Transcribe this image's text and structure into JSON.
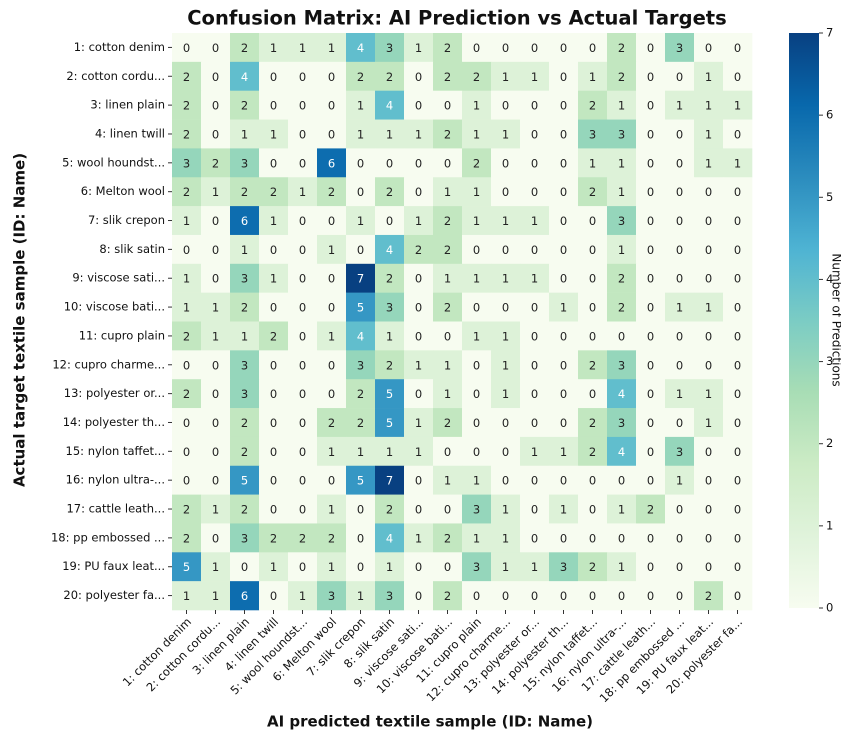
{
  "chart_data": {
    "type": "heatmap",
    "title": "Confusion Matrix: AI Prediction vs Actual Targets",
    "xlabel": "AI predicted textile sample (ID: Name)",
    "ylabel": "Actual target textile sample (ID: Name)",
    "colorbar_label": "Number of Predictions",
    "x_categories": [
      "1: cotton denim",
      "2: cotton cordu...",
      "3: linen plain",
      "4: linen twill",
      "5: wool houndst...",
      "6: Melton wool",
      "7: slik crepon",
      "8: slik satin",
      "9: viscose sati...",
      "10: viscose bati...",
      "11: cupro plain",
      "12: cupro charme...",
      "13: polyester or...",
      "14: polyester th...",
      "15: nylon taffet...",
      "16: nylon ultra-...",
      "17: cattle leath...",
      "18: pp embossed ...",
      "19: PU faux leat...",
      "20: polyester fa..."
    ],
    "y_categories": [
      "1: cotton denim",
      "2: cotton cordu...",
      "3: linen plain",
      "4: linen twill",
      "5: wool houndst...",
      "6: Melton wool",
      "7: slik crepon",
      "8: slik satin",
      "9: viscose sati...",
      "10: viscose bati...",
      "11: cupro plain",
      "12: cupro charme...",
      "13: polyester or...",
      "14: polyester th...",
      "15: nylon taffet...",
      "16: nylon ultra-...",
      "17: cattle leath...",
      "18: pp embossed ...",
      "19: PU faux leat...",
      "20: polyester fa..."
    ],
    "values": [
      [
        0,
        0,
        2,
        1,
        1,
        1,
        4,
        3,
        1,
        2,
        0,
        0,
        0,
        0,
        0,
        2,
        0,
        3,
        0,
        0
      ],
      [
        2,
        0,
        4,
        0,
        0,
        0,
        2,
        2,
        0,
        2,
        2,
        1,
        1,
        0,
        1,
        2,
        0,
        0,
        1,
        0
      ],
      [
        2,
        0,
        2,
        0,
        0,
        0,
        1,
        4,
        0,
        0,
        1,
        0,
        0,
        0,
        2,
        1,
        0,
        1,
        1,
        1
      ],
      [
        2,
        0,
        1,
        1,
        0,
        0,
        1,
        1,
        1,
        2,
        1,
        1,
        0,
        0,
        3,
        3,
        0,
        0,
        1,
        0
      ],
      [
        3,
        2,
        3,
        0,
        0,
        6,
        0,
        0,
        0,
        0,
        2,
        0,
        0,
        0,
        1,
        1,
        0,
        0,
        1,
        1
      ],
      [
        2,
        1,
        2,
        2,
        1,
        2,
        0,
        2,
        0,
        1,
        1,
        0,
        0,
        0,
        2,
        1,
        0,
        0,
        0,
        0
      ],
      [
        1,
        0,
        6,
        1,
        0,
        0,
        1,
        0,
        1,
        2,
        1,
        1,
        1,
        0,
        0,
        3,
        0,
        0,
        0,
        0
      ],
      [
        0,
        0,
        1,
        0,
        0,
        1,
        0,
        4,
        2,
        2,
        0,
        0,
        0,
        0,
        0,
        1,
        0,
        0,
        0,
        0
      ],
      [
        1,
        0,
        3,
        1,
        0,
        0,
        7,
        2,
        0,
        1,
        1,
        1,
        1,
        0,
        0,
        2,
        0,
        0,
        0,
        0
      ],
      [
        1,
        1,
        2,
        0,
        0,
        0,
        5,
        3,
        0,
        2,
        0,
        0,
        0,
        1,
        0,
        2,
        0,
        1,
        1,
        0
      ],
      [
        2,
        1,
        1,
        2,
        0,
        1,
        4,
        1,
        0,
        0,
        1,
        1,
        0,
        0,
        0,
        0,
        0,
        0,
        0,
        0
      ],
      [
        0,
        0,
        3,
        0,
        0,
        0,
        3,
        2,
        1,
        1,
        0,
        1,
        0,
        0,
        2,
        3,
        0,
        0,
        0,
        0
      ],
      [
        2,
        0,
        3,
        0,
        0,
        0,
        2,
        5,
        0,
        1,
        0,
        1,
        0,
        0,
        0,
        4,
        0,
        1,
        1,
        0
      ],
      [
        0,
        0,
        2,
        0,
        0,
        2,
        2,
        5,
        1,
        2,
        0,
        0,
        0,
        0,
        2,
        3,
        0,
        0,
        1,
        0
      ],
      [
        0,
        0,
        2,
        0,
        0,
        1,
        1,
        1,
        1,
        0,
        0,
        0,
        1,
        1,
        2,
        4,
        0,
        3,
        0,
        0
      ],
      [
        0,
        0,
        5,
        0,
        0,
        0,
        5,
        7,
        0,
        1,
        1,
        0,
        0,
        0,
        0,
        0,
        0,
        1,
        0,
        0
      ],
      [
        2,
        1,
        2,
        0,
        0,
        1,
        0,
        2,
        0,
        0,
        3,
        1,
        0,
        1,
        0,
        1,
        2,
        0,
        0,
        0
      ],
      [
        2,
        0,
        3,
        2,
        2,
        2,
        0,
        4,
        1,
        2,
        1,
        1,
        0,
        0,
        0,
        0,
        0,
        0,
        0,
        0
      ],
      [
        5,
        1,
        0,
        1,
        0,
        1,
        0,
        1,
        0,
        0,
        3,
        1,
        1,
        3,
        2,
        1,
        0,
        0,
        0,
        0
      ],
      [
        1,
        1,
        6,
        0,
        1,
        3,
        1,
        3,
        0,
        2,
        0,
        0,
        0,
        0,
        0,
        0,
        0,
        0,
        2,
        0
      ]
    ],
    "colormap": [
      "#f7fcf0",
      "#e0f3db",
      "#ccebc5",
      "#a8ddb5",
      "#7bccc4",
      "#4eb3d3",
      "#2b8cbe",
      "#0868ac",
      "#084081"
    ],
    "zlim": [
      0,
      7
    ],
    "zticks": [
      0,
      1,
      2,
      3,
      4,
      5,
      6,
      7
    ]
  }
}
